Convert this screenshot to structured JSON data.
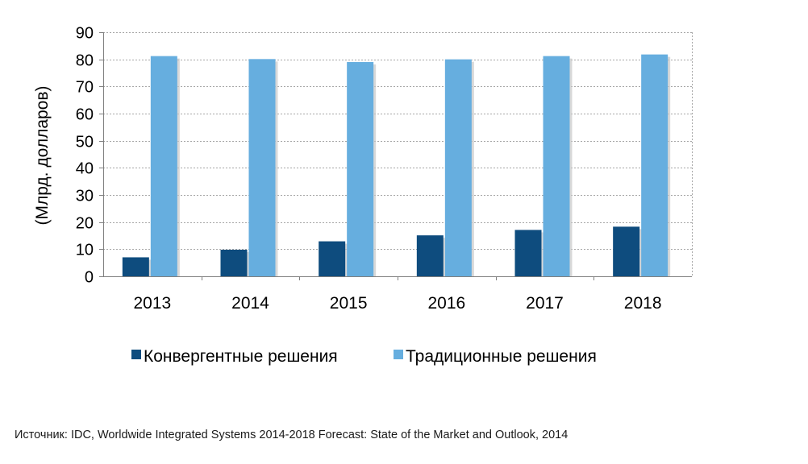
{
  "chart_data": {
    "type": "bar",
    "title": "",
    "xlabel": "",
    "ylabel": "(Млрд. долларов)",
    "categories": [
      "2013",
      "2014",
      "2015",
      "2016",
      "2017",
      "2018"
    ],
    "ylim": [
      0,
      90
    ],
    "yticks": [
      0,
      10,
      20,
      30,
      40,
      50,
      60,
      70,
      80,
      90
    ],
    "grid": true,
    "legend_position": "bottom",
    "series": [
      {
        "name": "Конвергентные решения",
        "color": "#0e4c7e",
        "values": [
          7,
          9.8,
          12.9,
          15.1,
          17.1,
          18.3
        ]
      },
      {
        "name": "Традиционные решения",
        "color": "#66aedf",
        "values": [
          81.2,
          80.1,
          79,
          80,
          81.2,
          81.8
        ]
      }
    ]
  },
  "source": "Источник: IDC, Worldwide Integrated Systems 2014-2018 Forecast: State of the Market and Outlook, 2014"
}
